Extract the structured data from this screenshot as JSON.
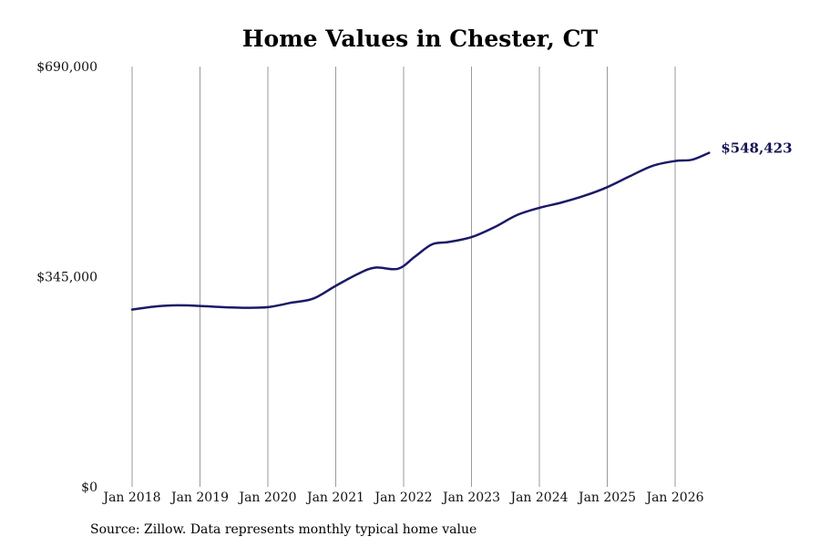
{
  "chart_data": {
    "type": "line",
    "title": "Home Values in Chester, CT",
    "xlabel": "",
    "ylabel": "",
    "ylim": [
      0,
      690000
    ],
    "xlim": [
      "2018-01",
      "2026-07"
    ],
    "y_ticks": [
      0,
      345000,
      690000
    ],
    "y_tick_labels": [
      "$0",
      "$345,000",
      "$690,000"
    ],
    "x_tick_labels": [
      "Jan 2018",
      "Jan 2019",
      "Jan 2020",
      "Jan 2021",
      "Jan 2022",
      "Jan 2023",
      "Jan 2024",
      "Jan 2025",
      "Jan 2026"
    ],
    "grid": "vertical",
    "line_color": "#1a1a66",
    "series": [
      {
        "x": [
          "2018-01",
          "2018-05",
          "2018-09",
          "2019-01",
          "2019-05",
          "2019-09",
          "2020-01",
          "2020-05",
          "2020-09",
          "2021-01",
          "2021-05",
          "2021-08",
          "2021-12",
          "2022-03",
          "2022-06",
          "2022-09",
          "2023-01",
          "2023-05",
          "2023-09",
          "2024-01",
          "2024-05",
          "2024-09",
          "2025-01",
          "2025-05",
          "2025-09",
          "2026-01",
          "2026-04",
          "2026-07"
        ],
        "y": [
          291000,
          296000,
          298000,
          297000,
          295000,
          294000,
          295000,
          302000,
          309000,
          330000,
          350000,
          360000,
          358000,
          378000,
          398000,
          402000,
          410000,
          426000,
          446000,
          458000,
          467000,
          478000,
          492000,
          510000,
          527000,
          535000,
          537000,
          548423
        ],
        "end_label": "$548,423"
      }
    ]
  },
  "source": "Source: Zillow. Data represents monthly typical home value"
}
